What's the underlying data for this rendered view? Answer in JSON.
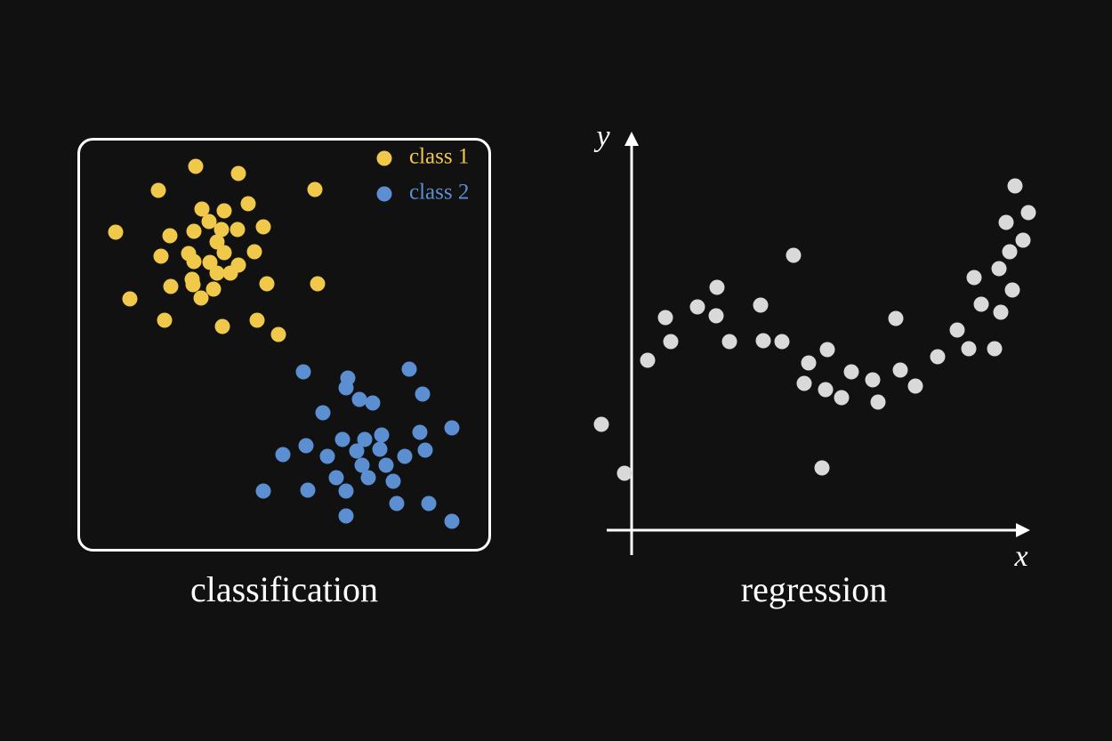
{
  "chart_data": [
    {
      "type": "scatter",
      "title": "classification",
      "frame": true,
      "legend": "upper right",
      "xlim": [
        0,
        465
      ],
      "ylim": [
        0,
        465
      ],
      "series": [
        {
          "name": "class 1",
          "color": "#f0c94a",
          "x": [
            133,
            181,
            91,
            267,
            192,
            140,
            165,
            148,
            209,
            43,
            104,
            131,
            162,
            180,
            157,
            199,
            94,
            125,
            165,
            131,
            149,
            181,
            157,
            172,
            129,
            213,
            270,
            105,
            130,
            153,
            139,
            59,
            98,
            202,
            163,
            226
          ],
          "values": [
            433,
            425,
            406,
            407,
            391,
            385,
            383,
            371,
            365,
            359,
            355,
            360,
            362,
            362,
            348,
            337,
            332,
            335,
            336,
            326,
            325,
            322,
            313,
            313,
            306,
            301,
            301,
            298,
            300,
            295,
            285,
            284,
            260,
            260,
            253,
            244
          ]
        },
        {
          "name": "class 2",
          "color": "#5b8fd1",
          "x": [
            254,
            373,
            304,
            302,
            388,
            317,
            332,
            276,
            385,
            421,
            342,
            298,
            323,
            257,
            314,
            340,
            391,
            231,
            281,
            368,
            320,
            347,
            291,
            327,
            355,
            209,
            259,
            302,
            359,
            395,
            302,
            421
          ],
          "values": [
            202,
            205,
            195,
            184,
            177,
            171,
            167,
            156,
            134,
            139,
            131,
            126,
            126,
            119,
            113,
            115,
            114,
            109,
            107,
            107,
            97,
            97,
            83,
            83,
            79,
            68,
            69,
            68,
            54,
            54,
            40,
            34
          ]
        }
      ]
    },
    {
      "type": "scatter",
      "title": "regression",
      "xlabel": "x",
      "ylabel": "y",
      "axes": true,
      "xlim": [
        -40,
        450
      ],
      "ylim": [
        -30,
        450
      ],
      "series": [
        {
          "color": "#d9d9d9",
          "x": [
            -34,
            -8,
            18,
            38,
            44,
            74,
            96,
            95,
            110,
            145,
            148,
            169,
            182,
            194,
            199,
            214,
            218,
            220,
            236,
            247,
            271,
            277,
            297,
            302,
            319,
            344,
            366,
            379,
            385,
            393,
            408,
            413,
            415,
            421,
            425,
            428,
            431,
            440,
            446
          ],
          "values": [
            119,
            64,
            191,
            239,
            212,
            251,
            273,
            241,
            212,
            253,
            213,
            212,
            309,
            165,
            188,
            70,
            158,
            203,
            149,
            178,
            169,
            144,
            238,
            180,
            162,
            195,
            225,
            204,
            284,
            254,
            204,
            294,
            245,
            346,
            313,
            270,
            387,
            326,
            357
          ]
        }
      ]
    }
  ]
}
